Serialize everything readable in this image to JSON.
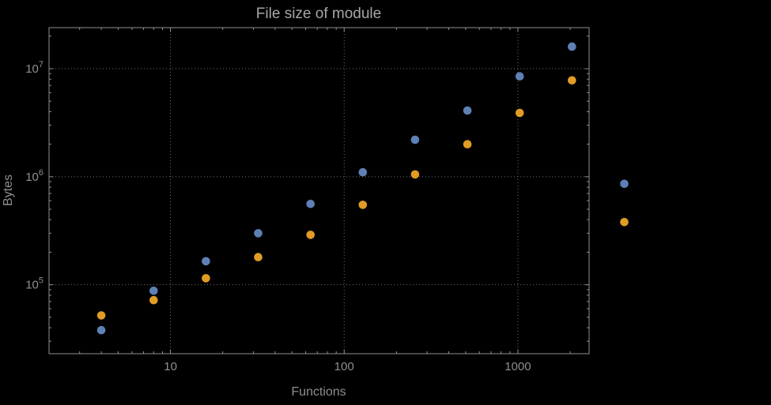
{
  "figure": {
    "background": "#000000"
  },
  "chart_data": {
    "type": "scatter",
    "title": "File size of module",
    "xlabel": "Functions",
    "ylabel": "Bytes",
    "xscale": "log",
    "yscale": "log",
    "grid": "dotted at major ticks",
    "legend": "none",
    "xlim": [
      2,
      2570
    ],
    "ylim": [
      23000,
      24000000
    ],
    "x_major_ticks": [
      10,
      100,
      1000
    ],
    "y_major_ticks": [
      100000,
      1000000,
      10000000
    ],
    "x": [
      4,
      8,
      16,
      32,
      64,
      128,
      256,
      512,
      1024,
      2048,
      4096
    ],
    "series": [
      {
        "name": "blue",
        "color": "#5E81B5",
        "values": [
          38000,
          88000,
          165000,
          300000,
          560000,
          1100000,
          2200000,
          4100000,
          8500000,
          16000000,
          860000
        ]
      },
      {
        "name": "orange",
        "color": "#E19C24",
        "values": [
          52000,
          72000,
          115000,
          180000,
          290000,
          550000,
          1050000,
          2000000,
          3900000,
          7800000,
          380000
        ]
      }
    ],
    "colors": {
      "frame": "#8f8f8f",
      "grid": "#6f6f6f",
      "title_text": "#a6a6a6",
      "label_text": "#8f8f8f"
    }
  }
}
